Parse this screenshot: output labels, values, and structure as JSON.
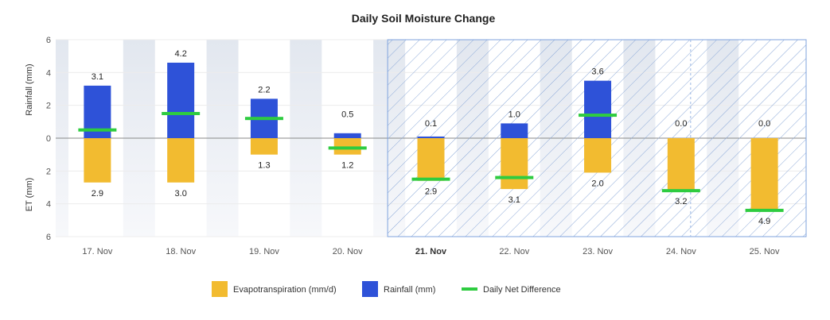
{
  "chart_data": {
    "type": "bar",
    "title": "Daily Soil Moisture Change",
    "categories": [
      "17. Nov",
      "18. Nov",
      "19. Nov",
      "20. Nov",
      "21. Nov",
      "22. Nov",
      "23. Nov",
      "24. Nov",
      "25. Nov"
    ],
    "highlight_category": "21. Nov",
    "forecast_range": [
      "21. Nov",
      "25. Nov"
    ],
    "y_axis_top_label": "Rainfall (mm)",
    "y_axis_bottom_label": "ET (mm)",
    "ylim": [
      -6,
      6
    ],
    "yticks": [
      6,
      4,
      2,
      0,
      2,
      4,
      6
    ],
    "series": [
      {
        "name": "Evapotranspiration (mm/d)",
        "color": "#f2bb30",
        "values": [
          2.9,
          3.0,
          1.3,
          1.2,
          2.9,
          3.1,
          2.0,
          3.2,
          4.9
        ],
        "bar_values": [
          2.7,
          2.7,
          1.0,
          1.0,
          2.6,
          3.1,
          2.1,
          3.2,
          4.4
        ]
      },
      {
        "name": "Rainfall (mm)",
        "color": "#2e52d8",
        "values": [
          3.1,
          4.2,
          2.2,
          0.5,
          0.1,
          1.0,
          3.6,
          0.0,
          0.0
        ],
        "bar_values": [
          3.2,
          4.6,
          2.4,
          0.3,
          0.1,
          0.9,
          3.5,
          0.0,
          0.0
        ]
      },
      {
        "name": "Daily Net Difference",
        "color": "#2ecc40",
        "values": [
          0.5,
          1.5,
          1.2,
          -0.6,
          -2.5,
          -2.4,
          1.4,
          -3.2,
          -4.4
        ]
      }
    ],
    "grid": true,
    "legend": "bottom"
  }
}
